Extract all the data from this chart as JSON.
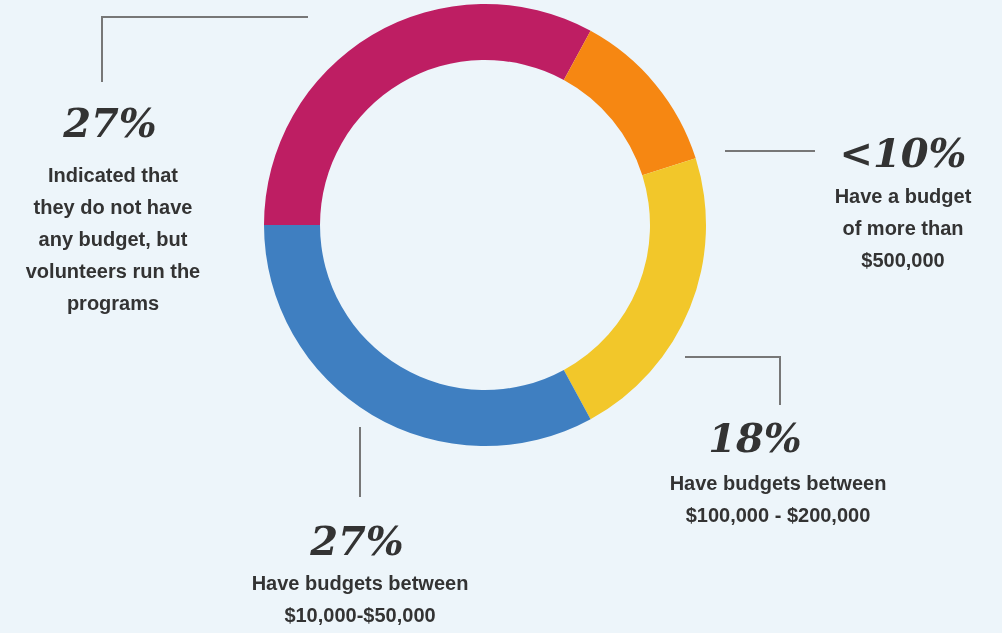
{
  "chart_data": {
    "type": "donut",
    "categories": [
      "Indicated that they do not have any budget, but volunteers run the programs",
      "Have a budget of more than $500,000",
      "Have budgets between $100,000 - $200,000",
      "Have budgets between $10,000-$50,000"
    ],
    "values": [
      27,
      10,
      18,
      27
    ],
    "value_labels": [
      "27%",
      "<10%",
      "18%",
      "27%"
    ],
    "colors": [
      "#be1e63",
      "#f68712",
      "#f2c72a",
      "#3f7fc1"
    ],
    "legend": false
  }
}
